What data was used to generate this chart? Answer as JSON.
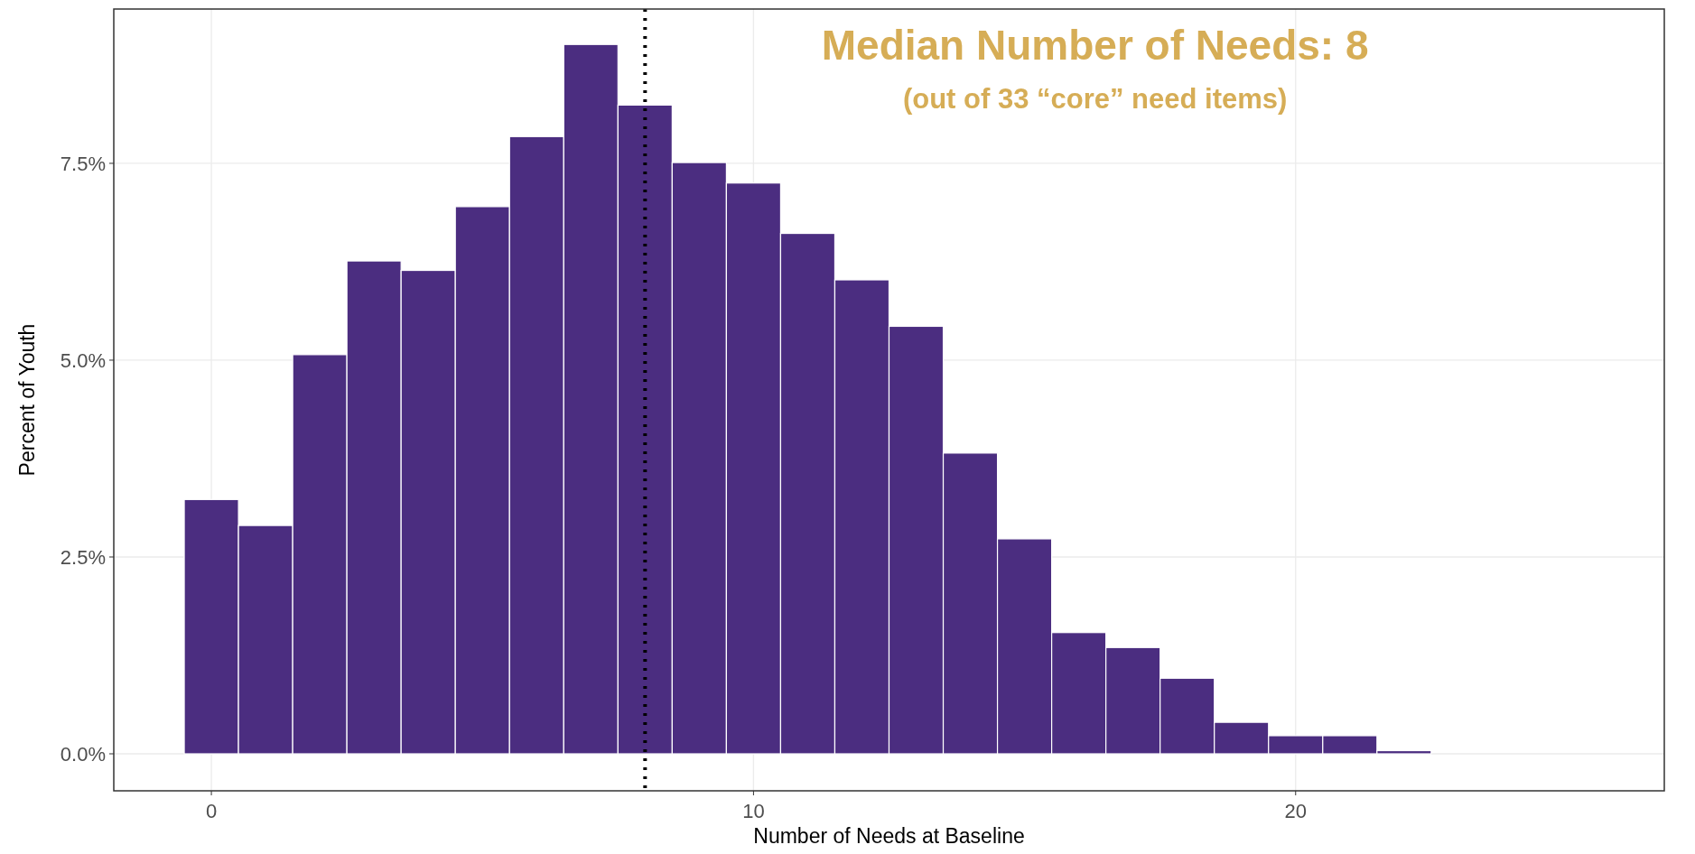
{
  "chart_data": {
    "type": "histogram",
    "xlabel": "Number of Needs at Baseline",
    "ylabel": "Percent of Youth",
    "bins": [
      -0.5,
      0.5,
      1.5,
      2.5,
      3.5,
      4.5,
      5.5,
      6.5,
      7.5,
      8.5,
      9.5,
      10.5,
      11.5,
      12.5,
      13.5,
      14.5,
      15.5,
      16.5,
      17.5,
      18.5,
      19.5,
      20.5,
      21.5,
      22.5
    ],
    "values": [
      3.23,
      2.9,
      5.07,
      6.26,
      6.14,
      6.95,
      7.84,
      9.01,
      8.24,
      7.51,
      7.25,
      6.61,
      6.02,
      5.43,
      3.82,
      2.73,
      1.54,
      1.35,
      0.96,
      0.4,
      0.23,
      0.23,
      0.04
    ],
    "color": "#4b2d80",
    "xlim": [
      -1.8,
      26.8
    ],
    "xticks": [
      0,
      10,
      20
    ],
    "ylim": [
      -0.47,
      9.46
    ],
    "yticks": [
      {
        "value": 0,
        "label": "0.0%"
      },
      {
        "value": 2.5,
        "label": "2.5%"
      },
      {
        "value": 5,
        "label": "5.0%"
      },
      {
        "value": 7.5,
        "label": "7.5%"
      }
    ],
    "grid": true,
    "ref_lines": [
      {
        "axis": "x",
        "value": 8,
        "label": null,
        "color": "#000000",
        "line_style": "dotted"
      }
    ],
    "annotations": [
      "Median Number of Needs: 8",
      "(out of 33 “core” need items)"
    ]
  }
}
